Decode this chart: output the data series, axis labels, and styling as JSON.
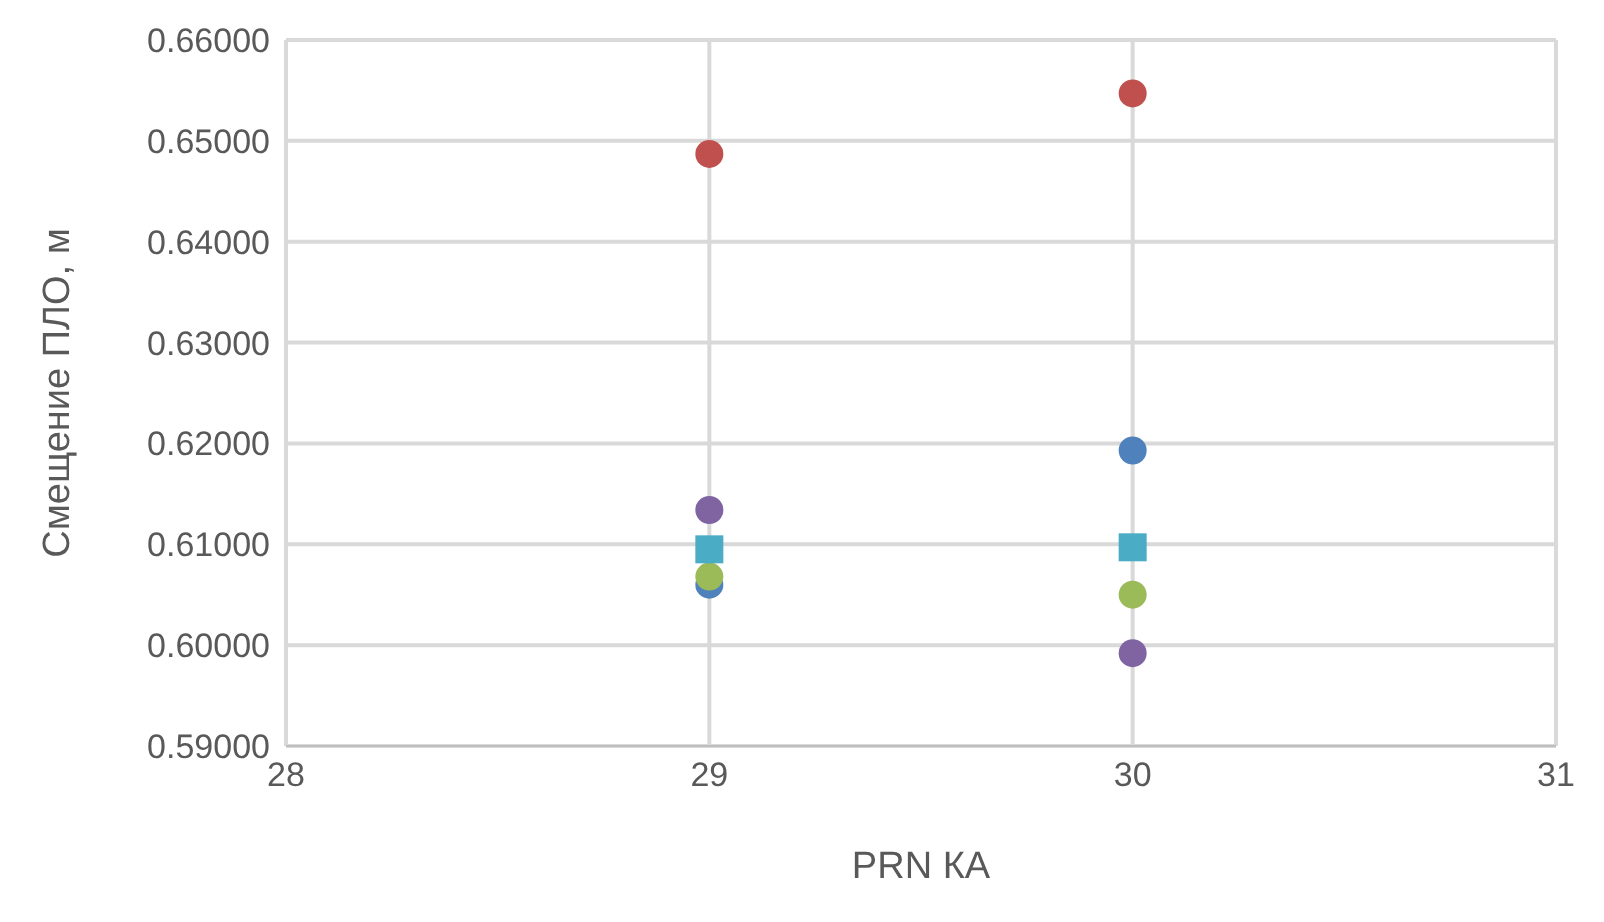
{
  "chart_data": {
    "type": "scatter",
    "xlabel": "PRN КА",
    "ylabel": "Смещение ПЛО, м",
    "x": [
      29,
      30
    ],
    "xlim": [
      28,
      31
    ],
    "xticks": [
      28,
      29,
      30,
      31
    ],
    "ylim": [
      0.59,
      0.66
    ],
    "yticks": [
      {
        "value": 0.59,
        "label": "0.59000"
      },
      {
        "value": 0.6,
        "label": "0.60000"
      },
      {
        "value": 0.61,
        "label": "0.61000"
      },
      {
        "value": 0.62,
        "label": "0.62000"
      },
      {
        "value": 0.63,
        "label": "0.63000"
      },
      {
        "value": 0.64,
        "label": "0.64000"
      },
      {
        "value": 0.65,
        "label": "0.65000"
      },
      {
        "value": 0.66,
        "label": "0.66000"
      }
    ],
    "grid": true,
    "marker": "circle",
    "series": [
      {
        "color": "#4f81bd",
        "values": [
          0.606,
          0.6193
        ]
      },
      {
        "color": "#c0504d",
        "values": [
          0.6487,
          0.6547
        ]
      },
      {
        "color": "#9bbb59",
        "values": [
          0.6068,
          0.605
        ]
      },
      {
        "color": "#8064a2",
        "values": [
          0.6134,
          0.5992
        ]
      },
      {
        "color": "#4bacc6",
        "values": [
          0.6095,
          0.6097
        ],
        "marker": "square"
      }
    ]
  }
}
